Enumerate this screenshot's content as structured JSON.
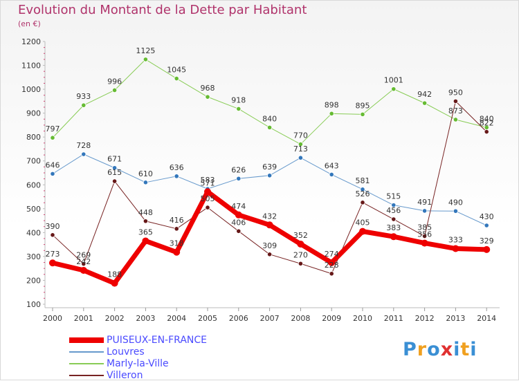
{
  "header": {
    "title": "Evolution du Montant de la Dette par Habitant",
    "subtitle": "(en €)"
  },
  "logo": {
    "letters": [
      "P",
      "r",
      "o",
      "x",
      "i",
      "t",
      "i"
    ],
    "colors": [
      "#3a8fd4",
      "#f0a020",
      "#3a8fd4",
      "#e03030",
      "#3a8fd4",
      "#f0a020",
      "#3a8fd4"
    ]
  },
  "chart_data": {
    "type": "line",
    "title": "Evolution du Montant de la Dette par Habitant",
    "subtitle": "(en €)",
    "x": [
      "2000",
      "2001",
      "2002",
      "2003",
      "2004",
      "2005",
      "2006",
      "2007",
      "2008",
      "2009",
      "2010",
      "2011",
      "2012",
      "2013",
      "2014"
    ],
    "ylim": [
      100,
      1200
    ],
    "yticks": [
      100,
      200,
      300,
      400,
      500,
      600,
      700,
      800,
      900,
      1000,
      1100,
      1200
    ],
    "grid": false,
    "legend_position": "bottom-left",
    "series": [
      {
        "name": "Marly-la-Ville",
        "color": "#88cc55",
        "dot": "#66bb33",
        "width": 1,
        "values": [
          797,
          933,
          996,
          1125,
          1045,
          968,
          918,
          840,
          770,
          898,
          895,
          1001,
          942,
          873,
          840
        ]
      },
      {
        "name": "Louvres",
        "color": "#6699cc",
        "dot": "#3377bb",
        "width": 1,
        "values": [
          646,
          728,
          671,
          610,
          636,
          583,
          626,
          639,
          713,
          643,
          581,
          515,
          491,
          490,
          430
        ]
      },
      {
        "name": "Villeron",
        "color": "#772222",
        "dot": "#661818",
        "width": 1,
        "values": [
          390,
          269,
          615,
          448,
          416,
          505,
          406,
          309,
          270,
          228,
          526,
          456,
          385,
          950,
          822
        ]
      },
      {
        "name": "PUISEUX-EN-FRANCE",
        "color": "#ee0000",
        "dot": "#ee0000",
        "width": 7,
        "values": [
          273,
          242,
          188,
          365,
          318,
          571,
          474,
          432,
          352,
          274,
          405,
          383,
          356,
          333,
          329
        ]
      }
    ],
    "legend_order": [
      "PUISEUX-EN-FRANCE",
      "Louvres",
      "Marly-la-Ville",
      "Villeron"
    ]
  }
}
